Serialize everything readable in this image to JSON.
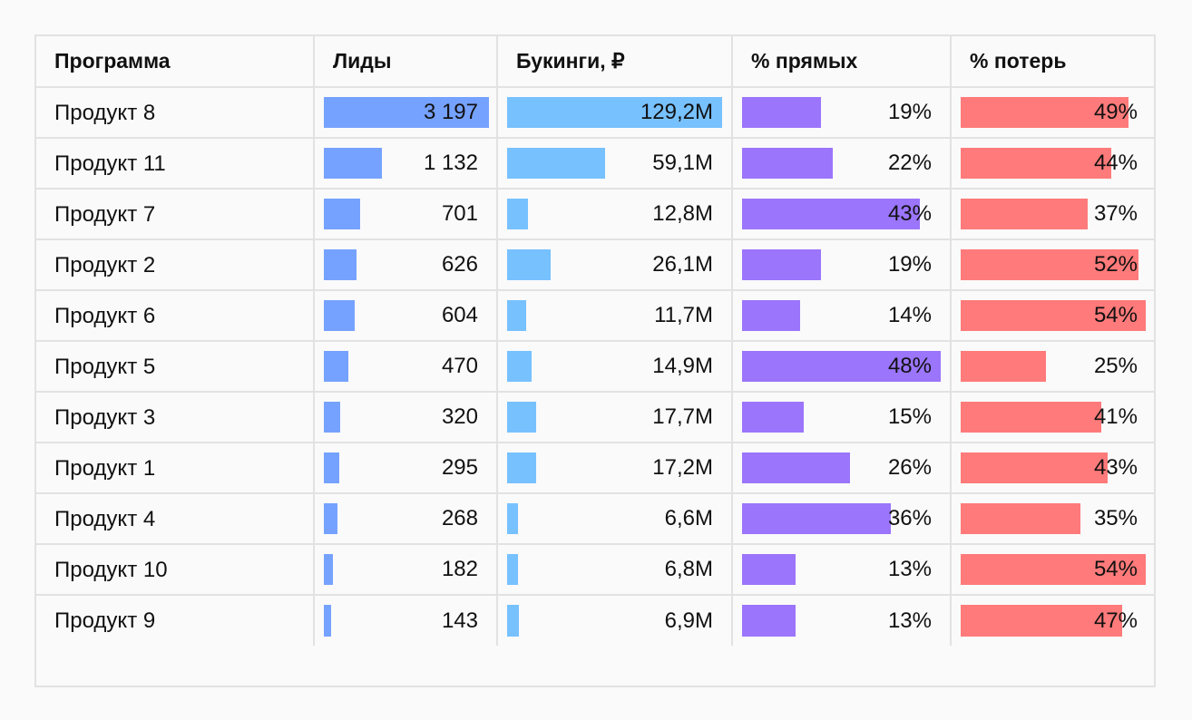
{
  "chart_data": {
    "type": "table",
    "columns": [
      "Программа",
      "Лиды",
      "Букинги, ₽",
      "% прямых",
      "% потерь"
    ],
    "colors": {
      "leads": "#76a2ff",
      "bookings": "#77c1ff",
      "direct": "#9b75fb",
      "loss": "#ff7a7a"
    },
    "rows": [
      {
        "program": "Продукт 8",
        "leads": 3197,
        "leads_label": "3 197",
        "bookings": 129.2,
        "bookings_label": "129,2M",
        "direct": 19,
        "direct_label": "19%",
        "loss": 49,
        "loss_label": "49%"
      },
      {
        "program": "Продукт 11",
        "leads": 1132,
        "leads_label": "1 132",
        "bookings": 59.1,
        "bookings_label": "59,1M",
        "direct": 22,
        "direct_label": "22%",
        "loss": 44,
        "loss_label": "44%"
      },
      {
        "program": "Продукт 7",
        "leads": 701,
        "leads_label": "701",
        "bookings": 12.8,
        "bookings_label": "12,8M",
        "direct": 43,
        "direct_label": "43%",
        "loss": 37,
        "loss_label": "37%"
      },
      {
        "program": "Продукт 2",
        "leads": 626,
        "leads_label": "626",
        "bookings": 26.1,
        "bookings_label": "26,1M",
        "direct": 19,
        "direct_label": "19%",
        "loss": 52,
        "loss_label": "52%"
      },
      {
        "program": "Продукт 6",
        "leads": 604,
        "leads_label": "604",
        "bookings": 11.7,
        "bookings_label": "11,7M",
        "direct": 14,
        "direct_label": "14%",
        "loss": 54,
        "loss_label": "54%"
      },
      {
        "program": "Продукт 5",
        "leads": 470,
        "leads_label": "470",
        "bookings": 14.9,
        "bookings_label": "14,9M",
        "direct": 48,
        "direct_label": "48%",
        "loss": 25,
        "loss_label": "25%"
      },
      {
        "program": "Продукт 3",
        "leads": 320,
        "leads_label": "320",
        "bookings": 17.7,
        "bookings_label": "17,7M",
        "direct": 15,
        "direct_label": "15%",
        "loss": 41,
        "loss_label": "41%"
      },
      {
        "program": "Продукт 1",
        "leads": 295,
        "leads_label": "295",
        "bookings": 17.2,
        "bookings_label": "17,2M",
        "direct": 26,
        "direct_label": "26%",
        "loss": 43,
        "loss_label": "43%"
      },
      {
        "program": "Продукт 4",
        "leads": 268,
        "leads_label": "268",
        "bookings": 6.6,
        "bookings_label": "6,6M",
        "direct": 36,
        "direct_label": "36%",
        "loss": 35,
        "loss_label": "35%"
      },
      {
        "program": "Продукт 10",
        "leads": 182,
        "leads_label": "182",
        "bookings": 6.8,
        "bookings_label": "6,8M",
        "direct": 13,
        "direct_label": "13%",
        "loss": 54,
        "loss_label": "54%"
      },
      {
        "program": "Продукт 9",
        "leads": 143,
        "leads_label": "143",
        "bookings": 6.9,
        "bookings_label": "6,9M",
        "direct": 13,
        "direct_label": "13%",
        "loss": 47,
        "loss_label": "47%"
      }
    ]
  }
}
